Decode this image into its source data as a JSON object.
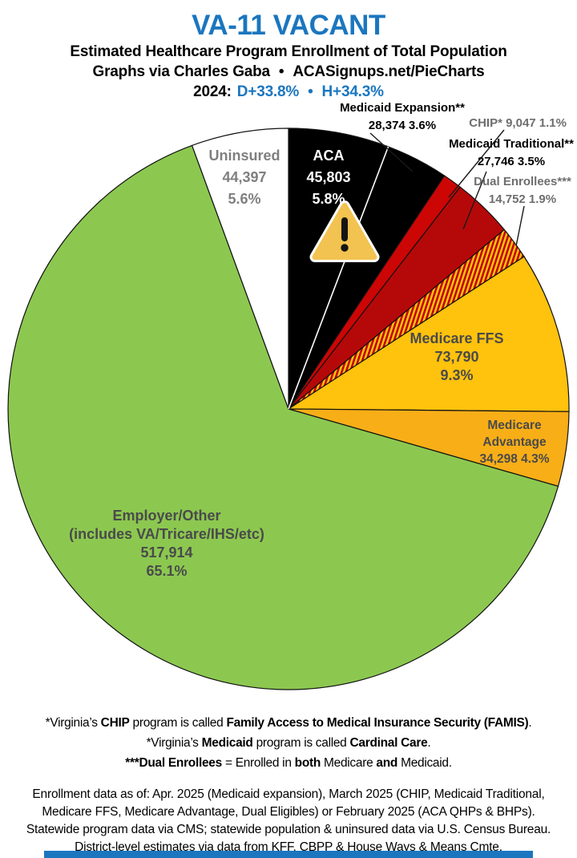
{
  "header": {
    "title": "VA-11 VACANT",
    "subtitle1": "Estimated Healthcare Program Enrollment of Total Population",
    "credit_prefix": "Graphs via Charles Gaba",
    "credit_bullet": "•",
    "credit_site": "ACASignups.net/PieCharts",
    "lean_year": "2024:",
    "lean_d": "D+33.8%",
    "lean_sep": "•",
    "lean_h": "H+34.3%"
  },
  "colors": {
    "title_blue": "#1B76BF",
    "pie_stroke": "#111111"
  },
  "warning_icon": {
    "fill": "#F2C350",
    "border": "#FFFFFF",
    "glyph": "#151515"
  },
  "chart_data": {
    "type": "pie",
    "title": "VA-11 VACANT",
    "subtitle": "Estimated Healthcare Program Enrollment of Total Population",
    "start_angle_deg": 0,
    "direction": "clockwise",
    "hatch_colors": [
      "#C00000",
      "#FFC10E"
    ],
    "slices": [
      {
        "id": "aca",
        "label": "ACA",
        "value": 45803,
        "display_value": "45,803",
        "pct": 5.8,
        "color": "#000000"
      },
      {
        "id": "medicaid-expansion",
        "label": "Medicaid Expansion**",
        "value": 28374,
        "display_value": "28,374",
        "pct": 3.6,
        "color": "#000000"
      },
      {
        "id": "chip",
        "label": "CHIP*",
        "value": 9047,
        "display_value": "9,047",
        "pct": 1.1,
        "color": "#CC0505"
      },
      {
        "id": "medicaid-traditional",
        "label": "Medicaid Traditional**",
        "value": 27746,
        "display_value": "27,746",
        "pct": 3.5,
        "color": "#B50909"
      },
      {
        "id": "dual-enrollees",
        "label": "Dual Enrollees***",
        "value": 14752,
        "display_value": "14,752",
        "pct": 1.9,
        "color": "hatch",
        "hatch": true
      },
      {
        "id": "medicare-ffs",
        "label": "Medicare FFS",
        "value": 73790,
        "display_value": "73,790",
        "pct": 9.3,
        "color": "#FFC20D"
      },
      {
        "id": "medicare-advantage",
        "label": "Medicare Advantage",
        "value": 34298,
        "display_value": "34,298",
        "pct": 4.3,
        "color": "#F8AE17"
      },
      {
        "id": "employer-other",
        "label": "Employer/Other (includes VA/Tricare/IHS/etc)",
        "value": 517914,
        "display_value": "517,914",
        "pct": 65.1,
        "color": "#8CC850"
      },
      {
        "id": "uninsured",
        "label": "Uninsured",
        "value": 44397,
        "display_value": "44,397",
        "pct": 5.6,
        "color": "#FFFFFF"
      }
    ]
  },
  "labels": {
    "aca": {
      "l1": "ACA",
      "l2": "45,803",
      "l3": "5.8%"
    },
    "uninsured": {
      "l1": "Uninsured",
      "l2": "44,397",
      "l3": "5.6%"
    },
    "expansion": {
      "l1": "Medicaid Expansion**",
      "l2": "28,374 3.6%"
    },
    "chip": {
      "l1": "CHIP* 9,047 1.1%"
    },
    "traditional": {
      "l1": "Medicaid Traditional**",
      "l2": "27,746 3.5%"
    },
    "dual": {
      "l1": "Dual Enrollees***",
      "l2": "14,752 1.9%"
    },
    "ffs": {
      "l1": "Medicare FFS",
      "l2": "73,790",
      "l3": "9.3%"
    },
    "ma": {
      "l1": "Medicare",
      "l2": "Advantage",
      "l3": "34,298 4.3%"
    },
    "employer": {
      "l1": "Employer/Other",
      "l2": "(includes VA/Tricare/IHS/etc)",
      "l3": "517,914",
      "l4": "65.1%"
    }
  },
  "footnotes": {
    "line1": [
      "*Virginia’s ",
      "CHIP",
      " program is called ",
      "Family Access to Medical Insurance Security (FAMIS)",
      "."
    ],
    "line2": [
      "*Virginia’s ",
      "Medicaid",
      " program is called ",
      "Cardinal Care",
      "."
    ],
    "line3": [
      "***Dual Enrollees",
      " = Enrolled in ",
      "both",
      " Medicare ",
      "and",
      " Medicaid."
    ]
  },
  "sources": {
    "lines": [
      "Enrollment data as of: Apr. 2025 (Medicaid expansion), March 2025 (CHIP, Medicaid Traditional,",
      "Medicare FFS, Medicare Advantage, Dual Eligibles) or February 2025 (ACA QHPs & BHPs).",
      "Statewide program data via CMS; statewide population & uninsured data via U.S. Census Bureau.",
      "District-level estimates via data from KFF, CBPP & House Ways & Means Cmte."
    ]
  }
}
